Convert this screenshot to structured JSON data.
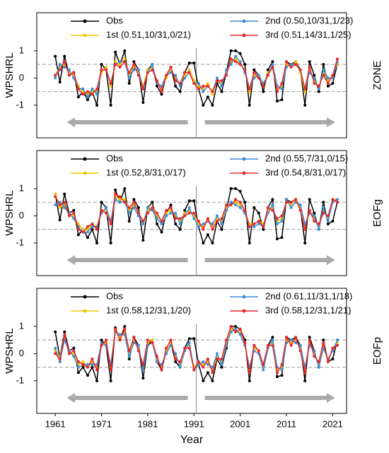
{
  "chart_data": [
    {
      "type": "line",
      "ylabel": "WPSHRL",
      "panel_label": "ZONE",
      "x": [
        1961,
        1962,
        1963,
        1964,
        1965,
        1966,
        1967,
        1968,
        1969,
        1970,
        1971,
        1972,
        1973,
        1974,
        1975,
        1976,
        1977,
        1978,
        1979,
        1980,
        1981,
        1982,
        1983,
        1984,
        1985,
        1986,
        1987,
        1988,
        1989,
        1990,
        1991,
        1992,
        1993,
        1994,
        1995,
        1996,
        1997,
        1998,
        1999,
        2000,
        2001,
        2002,
        2003,
        2004,
        2005,
        2006,
        2007,
        2008,
        2009,
        2010,
        2011,
        2012,
        2013,
        2014,
        2015,
        2016,
        2017,
        2018,
        2019,
        2020,
        2021,
        2022
      ],
      "xlim": [
        1957,
        2024
      ],
      "ylim": [
        -2.2,
        2.4
      ],
      "yticks": [
        -1,
        0,
        1
      ],
      "hlines": [
        -0.5,
        0.5
      ],
      "series": [
        {
          "name": "Obs",
          "color": "#000000",
          "values": [
            0.8,
            -0.15,
            0.8,
            0.1,
            0.2,
            -0.7,
            -0.5,
            -0.8,
            -0.5,
            -1.0,
            0.5,
            0.3,
            -1.0,
            0.95,
            0.5,
            1.0,
            -0.2,
            0.6,
            0.3,
            -0.9,
            0.3,
            0.5,
            -0.3,
            -0.6,
            0.1,
            0.4,
            -0.3,
            -0.5,
            0.2,
            0.55,
            0.55,
            -0.4,
            -1.0,
            -0.7,
            -1.0,
            -0.2,
            -0.5,
            0.2,
            1.0,
            1.0,
            0.9,
            0.5,
            -1.0,
            0.3,
            0.1,
            -0.5,
            0.3,
            0.6,
            -0.85,
            -0.8,
            0.6,
            0.5,
            0.6,
            0.3,
            -1.0,
            0.6,
            0.1,
            -0.5,
            0.5,
            -0.3,
            -0.2,
            0.5
          ]
        },
        {
          "name": "1st (0.51,10/31,0/21)",
          "color": "#f2c500",
          "values": [
            0.1,
            0.4,
            0.5,
            0.2,
            0.1,
            -0.3,
            -0.5,
            -0.6,
            -0.5,
            -0.5,
            0.2,
            0.4,
            -0.3,
            0.6,
            0.5,
            0.7,
            0.1,
            0.4,
            0.2,
            -0.3,
            0.3,
            0.4,
            -0.1,
            -0.4,
            0,
            0.3,
            0,
            -0.2,
            0.1,
            0.3,
            -0.1,
            -0.3,
            -0.4,
            -0.2,
            -0.6,
            -0.1,
            -0.2,
            0.2,
            0.6,
            0.7,
            0.5,
            0.3,
            -0.5,
            0.1,
            0,
            -0.3,
            0.2,
            0.4,
            -0.4,
            -0.3,
            0.5,
            0.4,
            0.6,
            0.2,
            -0.5,
            0.3,
            -0.1,
            -0.3,
            0.2,
            -0.1,
            0.1,
            0.5
          ]
        },
        {
          "name": "2nd (0.50,10/31,1/23)",
          "color": "#3b8ed8",
          "values": [
            0,
            0.5,
            0.4,
            0.3,
            0,
            -0.4,
            -0.4,
            -0.7,
            -0.4,
            -0.6,
            0.3,
            0.3,
            -0.2,
            0.5,
            0.6,
            0.6,
            0,
            0.3,
            0.3,
            -0.4,
            0.2,
            0.5,
            -0.2,
            -0.3,
            0.1,
            0.2,
            0.1,
            -0.3,
            0,
            0.2,
            -0.2,
            -0.2,
            -0.5,
            -0.3,
            -0.5,
            0,
            -0.3,
            0.3,
            0.5,
            0.8,
            0.6,
            0.2,
            -0.4,
            0,
            0.1,
            -0.2,
            0.1,
            0.5,
            -0.3,
            -0.4,
            0.4,
            0.5,
            0.5,
            0.3,
            -0.4,
            0.2,
            0,
            -0.4,
            0.3,
            0,
            0,
            0.6
          ]
        },
        {
          "name": "3rd (0.51,14/31,1/25)",
          "color": "#e8262a",
          "values": [
            0.1,
            0.3,
            0.6,
            0.1,
            0.2,
            -0.4,
            -0.6,
            -0.5,
            -0.6,
            -0.4,
            0.3,
            0.3,
            -0.2,
            0.5,
            0.4,
            0.6,
            0.2,
            0.5,
            0.1,
            -0.4,
            0.2,
            0.3,
            -0.1,
            -0.5,
            0.1,
            0.4,
            -0.1,
            -0.2,
            0.2,
            0.2,
            -0.2,
            -0.4,
            -0.3,
            -0.3,
            -0.5,
            -0.1,
            -0.1,
            0.1,
            0.7,
            0.6,
            0.5,
            0.3,
            -0.4,
            0.2,
            0,
            -0.3,
            0.1,
            0.4,
            -0.5,
            -0.2,
            0.6,
            0.4,
            0.5,
            0.3,
            -0.4,
            0.4,
            -0.2,
            -0.3,
            0.1,
            -0.2,
            0.1,
            0.7
          ]
        }
      ]
    },
    {
      "type": "line",
      "ylabel": "WPSHRL",
      "panel_label": "EOFg",
      "x": [
        1961,
        1962,
        1963,
        1964,
        1965,
        1966,
        1967,
        1968,
        1969,
        1970,
        1971,
        1972,
        1973,
        1974,
        1975,
        1976,
        1977,
        1978,
        1979,
        1980,
        1981,
        1982,
        1983,
        1984,
        1985,
        1986,
        1987,
        1988,
        1989,
        1990,
        1991,
        1992,
        1993,
        1994,
        1995,
        1996,
        1997,
        1998,
        1999,
        2000,
        2001,
        2002,
        2003,
        2004,
        2005,
        2006,
        2007,
        2008,
        2009,
        2010,
        2011,
        2012,
        2013,
        2014,
        2015,
        2016,
        2017,
        2018,
        2019,
        2020,
        2021,
        2022
      ],
      "xlim": [
        1957,
        2024
      ],
      "ylim": [
        -2.2,
        2.4
      ],
      "yticks": [
        -1,
        0,
        1
      ],
      "hlines": [
        -0.5,
        0.5
      ],
      "series": [
        {
          "name": "Obs",
          "color": "#000000",
          "values": [
            0.8,
            -0.15,
            0.8,
            0.1,
            0.2,
            -0.7,
            -0.5,
            -0.8,
            -0.5,
            -1.0,
            0.5,
            0.3,
            -1.0,
            0.95,
            0.5,
            1.0,
            -0.2,
            0.6,
            0.3,
            -0.9,
            0.3,
            0.5,
            -0.3,
            -0.6,
            0.1,
            0.4,
            -0.3,
            -0.5,
            0.2,
            0.55,
            0.55,
            -0.4,
            -1.0,
            -0.7,
            -1.0,
            -0.2,
            -0.5,
            0.2,
            1.0,
            1.0,
            0.9,
            0.5,
            -1.0,
            0.3,
            0.1,
            -0.5,
            0.3,
            0.6,
            -0.85,
            -0.8,
            0.6,
            0.5,
            0.6,
            0.3,
            -1.0,
            0.6,
            0.1,
            -0.5,
            0.5,
            -0.3,
            -0.2,
            0.5
          ]
        },
        {
          "name": "1st (0.52,8/31,0/17)",
          "color": "#f2c500",
          "values": [
            0.8,
            0.3,
            0.4,
            0,
            0,
            -0.3,
            -0.5,
            -0.5,
            -0.3,
            -0.4,
            0.2,
            0.2,
            -0.3,
            0.7,
            0.6,
            0.6,
            0.2,
            0.4,
            0.1,
            -0.2,
            0.2,
            0.3,
            0,
            -0.2,
            0.1,
            0.2,
            0,
            -0.2,
            0.1,
            0.2,
            0,
            -0.3,
            -0.4,
            -0.1,
            -0.4,
            -0.1,
            -0.2,
            0.3,
            0.4,
            0.5,
            0.4,
            0.2,
            -0.3,
            -0.3,
            -0.2,
            -0.3,
            0.2,
            0.3,
            -0.2,
            -0.1,
            0.5,
            0.4,
            0.6,
            0.3,
            -0.4,
            0.2,
            -0.1,
            -0.4,
            0.2,
            -0.1,
            0.6,
            0.6
          ]
        },
        {
          "name": "2nd (0.55,7/31,0/15)",
          "color": "#3b8ed8",
          "values": [
            0.4,
            0.5,
            0.3,
            0.1,
            -0.1,
            -0.4,
            -0.6,
            -0.6,
            -0.4,
            -0.4,
            0.1,
            0.3,
            -0.2,
            0.6,
            0.5,
            0.5,
            0.1,
            0.3,
            0,
            -0.3,
            0.3,
            0.2,
            -0.1,
            -0.3,
            0,
            0.1,
            0.1,
            -0.3,
            0,
            0.3,
            -0.1,
            -0.4,
            -0.3,
            -0.2,
            -0.3,
            0,
            -0.3,
            0.2,
            0.5,
            0.4,
            0.3,
            0.1,
            -0.4,
            -0.4,
            -0.3,
            -0.4,
            0.1,
            0.4,
            -0.3,
            -0.2,
            0.6,
            0.3,
            0.5,
            0.4,
            -0.3,
            0.1,
            0,
            -0.5,
            0.3,
            -0.2,
            0.5,
            0.6
          ]
        },
        {
          "name": "3rd (0.54,8/31,0/17)",
          "color": "#e8262a",
          "values": [
            0.7,
            0.4,
            0.5,
            0,
            0.1,
            -0.5,
            -0.6,
            -0.4,
            -0.3,
            -0.5,
            0.2,
            0.1,
            -0.3,
            0.8,
            0.7,
            0.5,
            0.3,
            0.5,
            0.1,
            -0.2,
            0.1,
            0.3,
            0.1,
            -0.2,
            0.2,
            0.3,
            -0.1,
            -0.1,
            0,
            0.1,
            0.1,
            -0.2,
            -0.5,
            -0.1,
            -0.5,
            -0.2,
            -0.1,
            0.4,
            0.4,
            0.6,
            0.5,
            0.2,
            -0.4,
            -0.3,
            -0.2,
            -0.4,
            0.3,
            0.2,
            -0.1,
            0,
            0.5,
            0.5,
            0.6,
            0.2,
            -0.5,
            0.2,
            -0.2,
            -0.3,
            0.1,
            0,
            0.6,
            0.5
          ]
        }
      ]
    },
    {
      "type": "line",
      "ylabel": "WPSHRL",
      "panel_label": "EOFp",
      "xlabel": "Year",
      "x": [
        1961,
        1962,
        1963,
        1964,
        1965,
        1966,
        1967,
        1968,
        1969,
        1970,
        1971,
        1972,
        1973,
        1974,
        1975,
        1976,
        1977,
        1978,
        1979,
        1980,
        1981,
        1982,
        1983,
        1984,
        1985,
        1986,
        1987,
        1988,
        1989,
        1990,
        1991,
        1992,
        1993,
        1994,
        1995,
        1996,
        1997,
        1998,
        1999,
        2000,
        2001,
        2002,
        2003,
        2004,
        2005,
        2006,
        2007,
        2008,
        2009,
        2010,
        2011,
        2012,
        2013,
        2014,
        2015,
        2016,
        2017,
        2018,
        2019,
        2020,
        2021,
        2022
      ],
      "xlim": [
        1957,
        2024
      ],
      "xticks": [
        1961,
        1971,
        1981,
        1991,
        2001,
        2011,
        2021
      ],
      "ylim": [
        -2.2,
        2.4
      ],
      "yticks": [
        -1,
        0,
        1
      ],
      "hlines": [
        -0.5,
        0.5
      ],
      "series": [
        {
          "name": "Obs",
          "color": "#000000",
          "values": [
            0.8,
            -0.15,
            0.8,
            0.1,
            0.2,
            -0.7,
            -0.5,
            -0.8,
            -0.5,
            -1.0,
            0.5,
            0.3,
            -1.0,
            0.95,
            0.5,
            1.0,
            -0.2,
            0.6,
            0.3,
            -0.9,
            0.3,
            0.5,
            -0.3,
            -0.6,
            0.1,
            0.4,
            -0.3,
            -0.5,
            0.2,
            0.55,
            0.55,
            -0.4,
            -1.0,
            -0.7,
            -1.0,
            -0.2,
            -0.5,
            0.2,
            1.0,
            1.0,
            0.9,
            0.5,
            -1.0,
            0.3,
            0.1,
            -0.5,
            0.3,
            0.6,
            -0.85,
            -0.8,
            0.6,
            0.5,
            0.6,
            0.3,
            -1.0,
            0.6,
            0.1,
            -0.5,
            0.5,
            -0.3,
            -0.2,
            0.5
          ]
        },
        {
          "name": "1st (0.58,12/31,1/20)",
          "color": "#f2c500",
          "values": [
            0.1,
            -0.1,
            0.6,
            0,
            0,
            -0.4,
            -0.3,
            -0.5,
            -0.3,
            -0.5,
            0.3,
            0.4,
            -0.5,
            0.9,
            0.6,
            0.8,
            0,
            0.5,
            0.2,
            -0.5,
            0.4,
            0.5,
            -0.2,
            -0.5,
            0.1,
            0.4,
            -0.1,
            -0.4,
            0.2,
            0.3,
            -0.5,
            -0.3,
            -0.4,
            -0.3,
            -0.6,
            -0.1,
            -0.3,
            0.4,
            0.9,
            0.8,
            0.8,
            0.4,
            -0.6,
            0.2,
            0.1,
            -0.5,
            0.3,
            0.4,
            -0.6,
            -0.5,
            0.5,
            0.4,
            0.5,
            0.2,
            -0.6,
            0.4,
            0,
            -0.4,
            0.3,
            -0.3,
            0.2,
            0.4
          ]
        },
        {
          "name": "2nd (0.61,11/31,1/18)",
          "color": "#3b8ed8",
          "values": [
            0.2,
            -0.3,
            0.5,
            0.1,
            -0.1,
            -0.5,
            -0.4,
            -0.4,
            -0.4,
            -0.4,
            0.4,
            0.3,
            -0.4,
            0.8,
            0.7,
            0.7,
            -0.1,
            0.4,
            0.3,
            -0.6,
            0.3,
            0.4,
            -0.3,
            -0.4,
            0,
            0.3,
            0,
            -0.5,
            0.1,
            0.4,
            -0.6,
            -0.4,
            -0.3,
            -0.4,
            -0.5,
            0,
            -0.4,
            0.3,
            0.8,
            0.9,
            0.7,
            0.3,
            -0.5,
            0.1,
            0,
            -0.6,
            0.2,
            0.5,
            -0.5,
            -0.6,
            0.4,
            0.5,
            0.4,
            0.3,
            -0.5,
            0.3,
            0.1,
            -0.5,
            0.2,
            -0.2,
            0.1,
            0.5
          ]
        },
        {
          "name": "3rd (0.58,12/31,1/21)",
          "color": "#e8262a",
          "values": [
            0,
            -0.2,
            0.7,
            0,
            0.1,
            -0.3,
            -0.4,
            -0.5,
            -0.2,
            -0.6,
            0.3,
            0.5,
            -0.6,
            0.9,
            0.5,
            0.9,
            0.1,
            0.6,
            0.1,
            -0.4,
            0.5,
            0.4,
            -0.1,
            -0.6,
            0.2,
            0.5,
            -0.2,
            -0.3,
            0.2,
            0.2,
            -0.6,
            -0.3,
            -0.5,
            -0.2,
            -0.7,
            -0.2,
            -0.2,
            0.5,
            1.0,
            0.8,
            0.9,
            0.4,
            -0.7,
            0.3,
            0.1,
            -0.4,
            0.3,
            0.3,
            -0.7,
            -0.4,
            0.6,
            0.3,
            0.6,
            0.1,
            -0.7,
            0.5,
            -0.1,
            -0.3,
            0.4,
            -0.3,
            0.2,
            0.3
          ]
        }
      ]
    }
  ]
}
